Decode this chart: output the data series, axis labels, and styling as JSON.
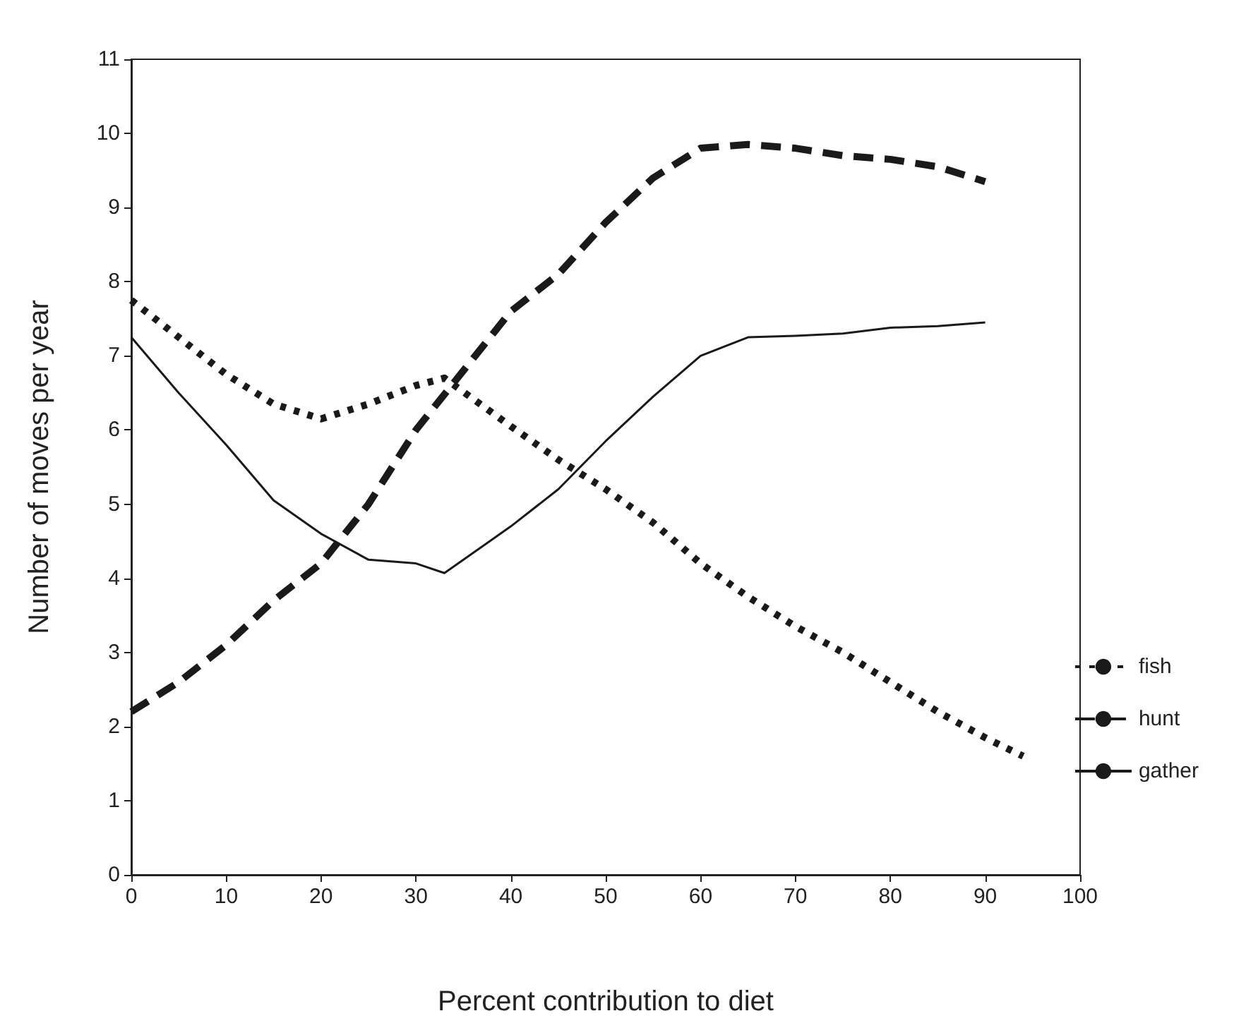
{
  "chart_data": {
    "type": "line",
    "xlabel": "Percent contribution to diet",
    "ylabel": "Number of moves per year",
    "xlim": [
      0,
      100
    ],
    "xticks": [
      0,
      10,
      20,
      30,
      40,
      50,
      60,
      70,
      80,
      90,
      100
    ],
    "ylim": [
      0,
      11
    ],
    "yticks": [
      0,
      1,
      2,
      3,
      4,
      5,
      6,
      7,
      8,
      9,
      10,
      11
    ],
    "grid": false,
    "legend": "right",
    "marker": "none",
    "series": [
      {
        "name": "fish",
        "color": "#1a1a1a",
        "line_style": "dotted",
        "x": [
          0,
          5,
          10,
          15,
          20,
          25,
          30,
          33,
          40,
          45,
          50,
          55,
          60,
          65,
          70,
          75,
          80,
          85,
          90,
          94
        ],
        "values": [
          7.75,
          7.25,
          6.75,
          6.35,
          6.15,
          6.35,
          6.6,
          6.7,
          6.05,
          5.6,
          5.2,
          4.75,
          4.2,
          3.75,
          3.35,
          3.0,
          2.6,
          2.2,
          1.85,
          1.6
        ]
      },
      {
        "name": "hunt",
        "color": "#1a1a1a",
        "line_style": "dashed",
        "x": [
          0,
          5,
          10,
          15,
          20,
          25,
          30,
          35,
          40,
          45,
          50,
          55,
          60,
          65,
          70,
          75,
          80,
          85,
          90
        ],
        "values": [
          2.2,
          2.6,
          3.1,
          3.7,
          4.2,
          5.0,
          6.0,
          6.8,
          7.6,
          8.1,
          8.8,
          9.4,
          9.8,
          9.85,
          9.8,
          9.7,
          9.65,
          9.55,
          9.35
        ]
      },
      {
        "name": "gather",
        "color": "#1a1a1a",
        "line_style": "solid",
        "x": [
          0,
          5,
          10,
          15,
          20,
          25,
          30,
          33,
          40,
          45,
          50,
          55,
          60,
          65,
          70,
          75,
          80,
          85,
          90
        ],
        "values": [
          7.25,
          6.5,
          5.8,
          5.05,
          4.6,
          4.25,
          4.2,
          4.07,
          4.7,
          5.2,
          5.85,
          6.45,
          7.0,
          7.25,
          7.27,
          7.3,
          7.38,
          7.4,
          7.45
        ]
      }
    ]
  }
}
